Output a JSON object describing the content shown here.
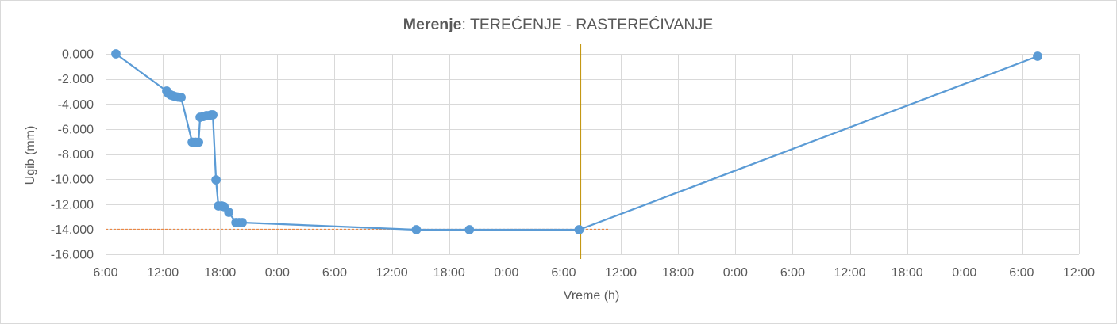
{
  "chart_data": {
    "type": "line",
    "title_parts": [
      {
        "text": "Merenje",
        "bold": true
      },
      {
        "text": ": TEREĆENJE - RASTEREĆIVANJE",
        "bold": false
      }
    ],
    "xlabel": "Vreme (h)",
    "ylabel": "Ugib (mm)",
    "xlim": [
      6,
      108
    ],
    "ylim": [
      -16,
      0
    ],
    "x_ticks": [
      6,
      12,
      18,
      24,
      30,
      36,
      42,
      48,
      54,
      60,
      66,
      72,
      78,
      84,
      90,
      96,
      102,
      108
    ],
    "x_tick_labels": [
      "6:00",
      "12:00",
      "18:00",
      "0:00",
      "6:00",
      "12:00",
      "18:00",
      "0:00",
      "6:00",
      "12:00",
      "18:00",
      "0:00",
      "6:00",
      "12:00",
      "18:00",
      "0:00",
      "6:00",
      "12:00"
    ],
    "y_ticks": [
      0,
      -2,
      -4,
      -6,
      -8,
      -10,
      -12,
      -14,
      -16
    ],
    "y_tick_labels": [
      "0.000",
      "-2.000",
      "-4.000",
      "-6.000",
      "-8.000",
      "-10.000",
      "-12.000",
      "-14.000",
      "-16.000"
    ],
    "grid": true,
    "grid_color": "#D9D9D9",
    "legend": false,
    "series": [
      {
        "color": "#5B9BD5",
        "points": [
          [
            7.08,
            0.0
          ],
          [
            12.41,
            -2.97
          ],
          [
            12.58,
            -3.16
          ],
          [
            12.83,
            -3.29
          ],
          [
            13.08,
            -3.35
          ],
          [
            13.33,
            -3.42
          ],
          [
            13.58,
            -3.45
          ],
          [
            13.91,
            -3.48
          ],
          [
            15.08,
            -7.05
          ],
          [
            15.41,
            -7.05
          ],
          [
            15.74,
            -7.05
          ],
          [
            15.91,
            -5.06
          ],
          [
            16.24,
            -5.0
          ],
          [
            16.57,
            -4.93
          ],
          [
            16.82,
            -4.93
          ],
          [
            17.07,
            -4.87
          ],
          [
            17.24,
            -4.87
          ],
          [
            17.57,
            -10.06
          ],
          [
            17.82,
            -12.14
          ],
          [
            18.16,
            -12.14
          ],
          [
            18.41,
            -12.2
          ],
          [
            18.91,
            -12.65
          ],
          [
            19.66,
            -13.47
          ],
          [
            19.99,
            -13.47
          ],
          [
            20.32,
            -13.47
          ],
          [
            38.56,
            -14.04
          ],
          [
            44.13,
            -14.04
          ],
          [
            55.63,
            -14.04
          ],
          [
            103.67,
            -0.19
          ]
        ]
      }
    ],
    "vertical_lines": [
      {
        "x": 55.8,
        "color": "#BF9000"
      }
    ],
    "horizontal_lines": [
      {
        "y": -14.0,
        "x_range": [
          6,
          58.9
        ],
        "color": "#ED7D31",
        "dashed": true
      }
    ]
  }
}
